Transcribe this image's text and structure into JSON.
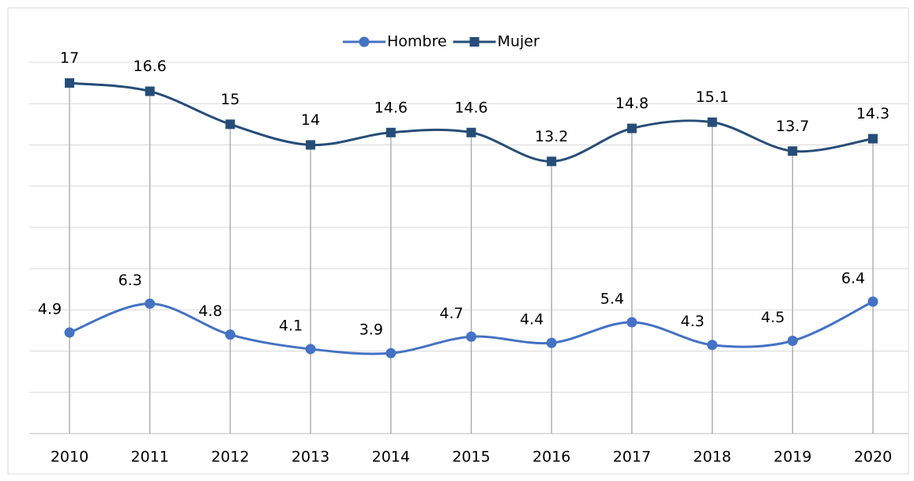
{
  "chart_data": {
    "type": "line",
    "categories": [
      "2010",
      "2011",
      "2012",
      "2013",
      "2014",
      "2015",
      "2016",
      "2017",
      "2018",
      "2019",
      "2020"
    ],
    "series": [
      {
        "name": "Hombre",
        "color": "#4472c4",
        "marker": "circle",
        "values": [
          4.9,
          6.3,
          4.8,
          4.1,
          3.9,
          4.7,
          4.4,
          5.4,
          4.3,
          4.5,
          6.4
        ]
      },
      {
        "name": "Mujer",
        "color": "#264d78",
        "marker": "square",
        "values": [
          17,
          16.6,
          15,
          14,
          14.6,
          14.6,
          13.2,
          14.8,
          15.1,
          13.7,
          14.3
        ]
      }
    ],
    "ylim": [
      0,
      18
    ],
    "yticks": [
      0,
      2,
      4,
      6,
      8,
      10,
      12,
      14,
      16,
      18
    ],
    "grid": true,
    "smooth": true,
    "drop_lines": true,
    "legend": "top"
  }
}
